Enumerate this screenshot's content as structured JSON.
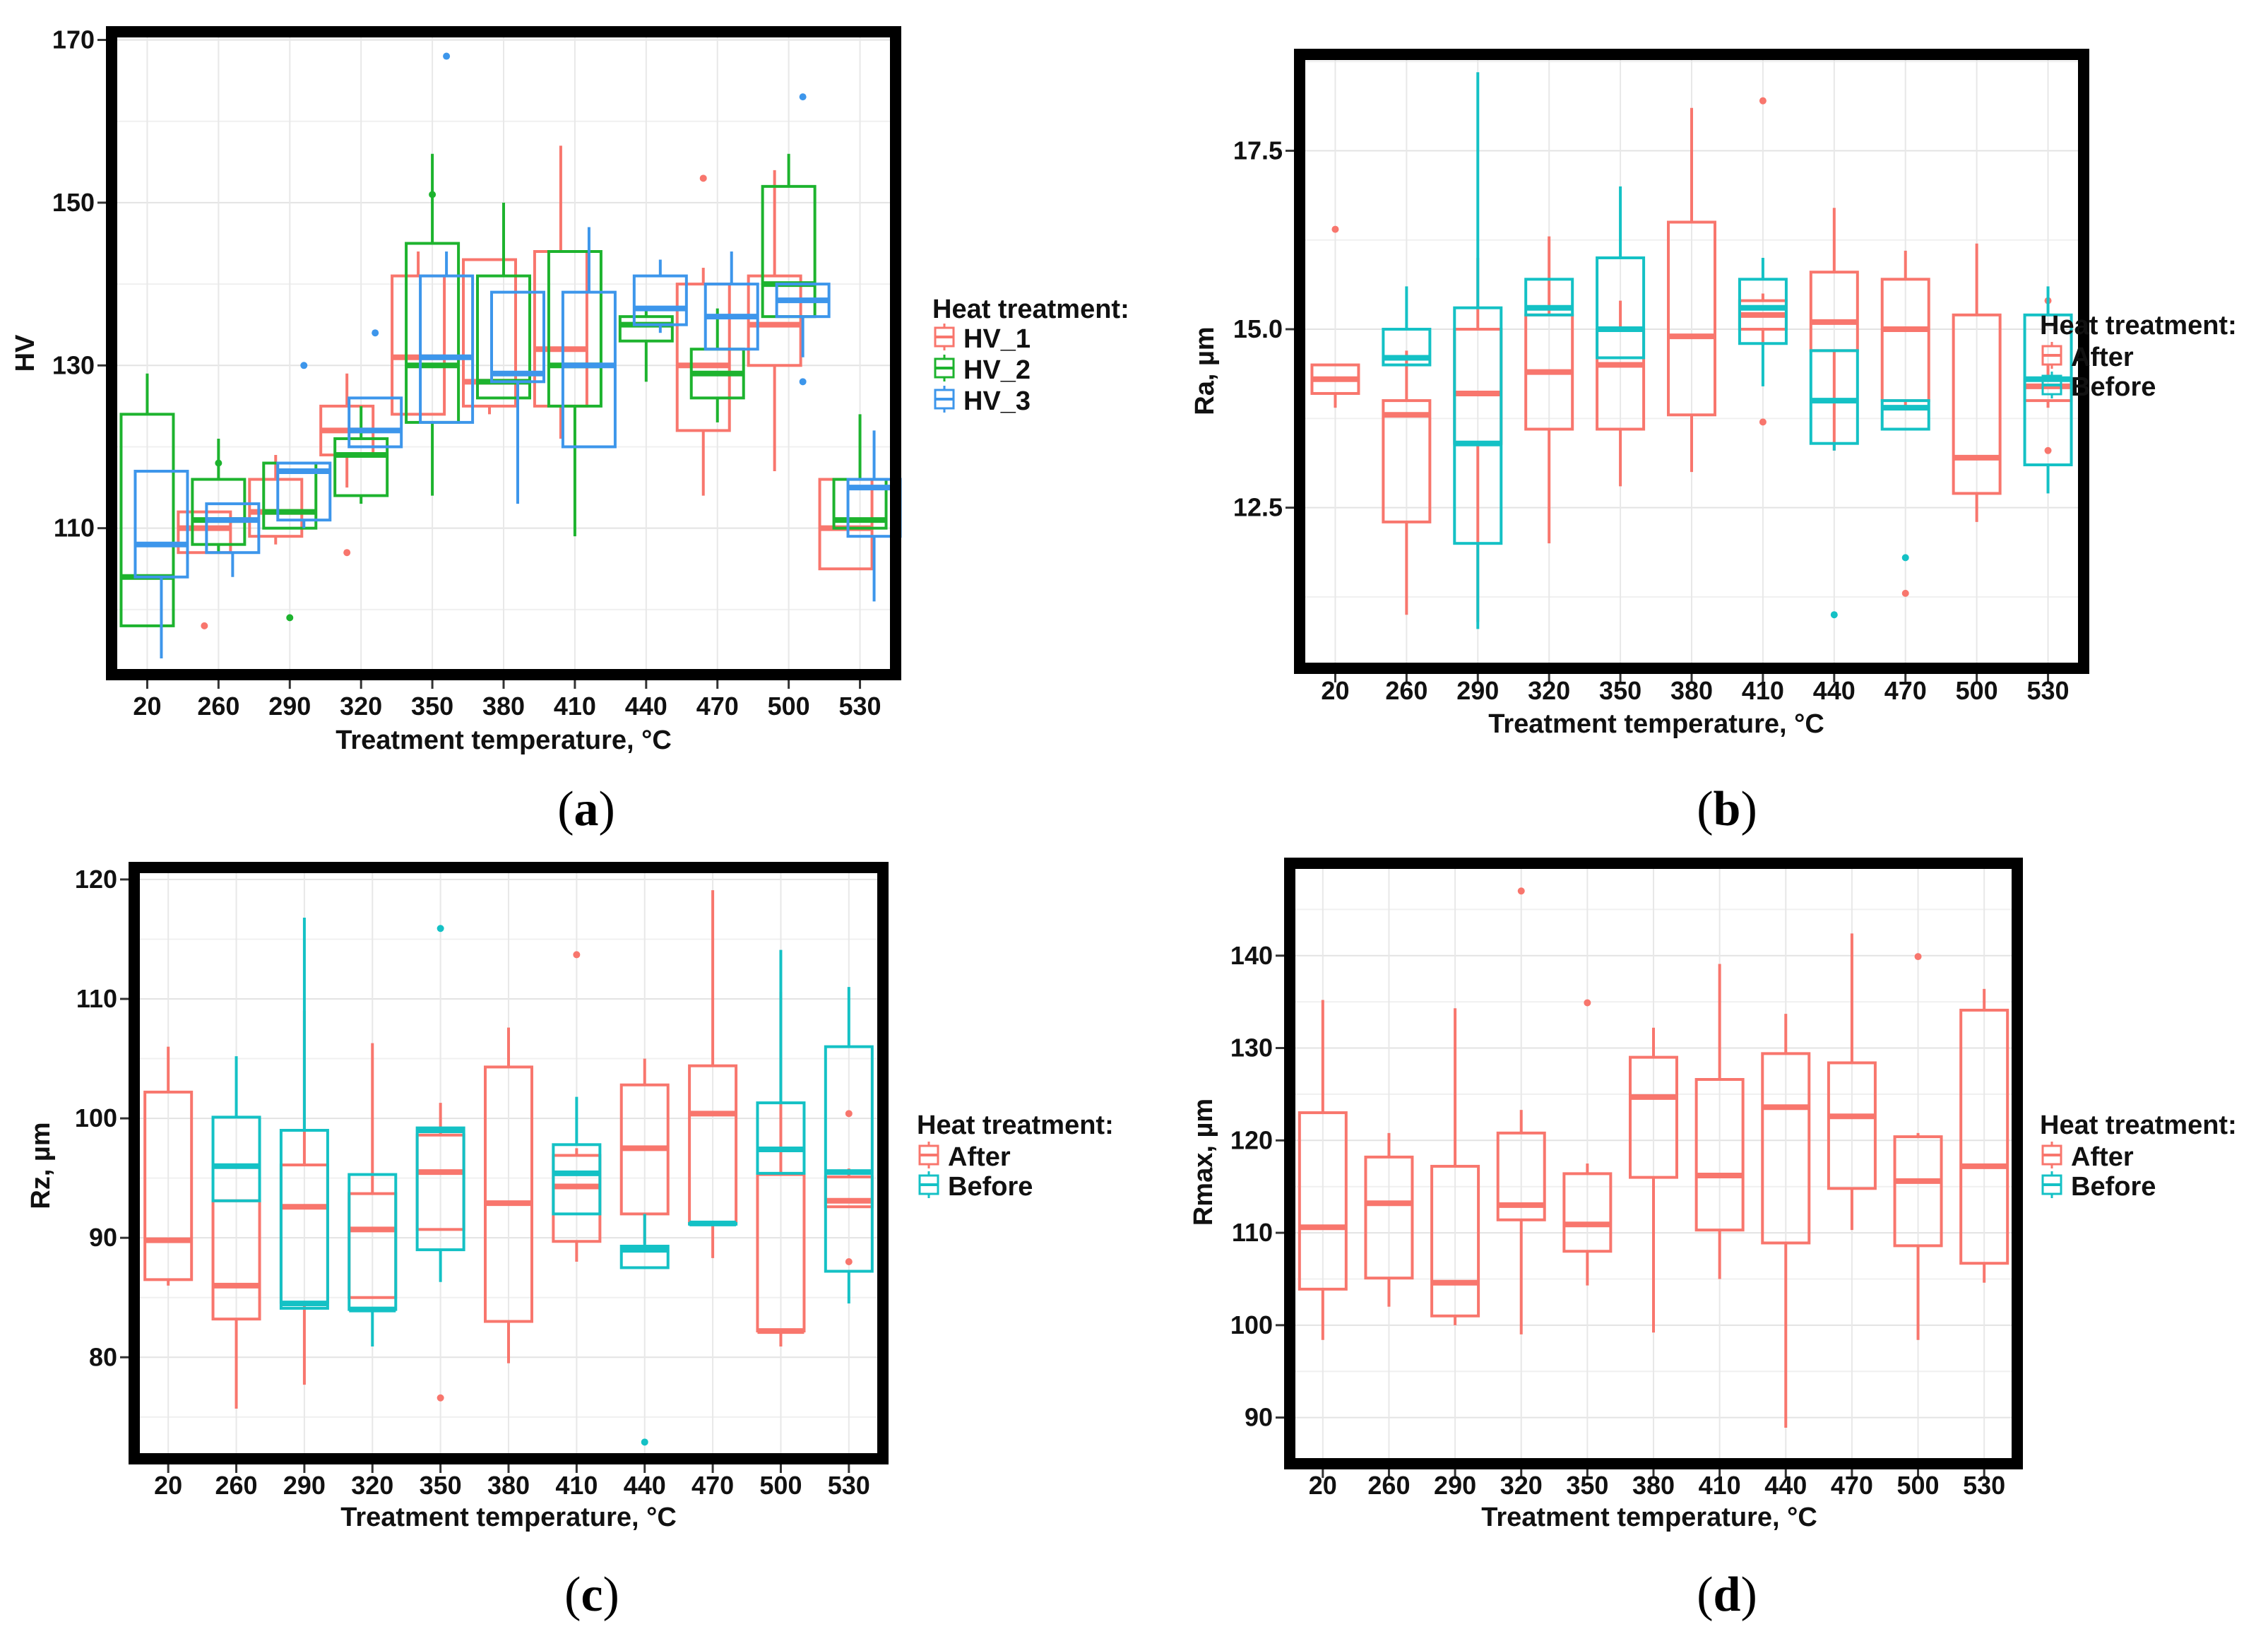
{
  "colors": {
    "HV_1": "#F8766D",
    "HV_2": "#1DB32E",
    "HV_3": "#3D96EB",
    "After": "#F8766D",
    "Before": "#14C1C5"
  },
  "chart_data": [
    {
      "panel": "a",
      "type": "box",
      "ylabel": "HV",
      "xlabel": "Treatment temperature, °C",
      "categories": [
        "20",
        "260",
        "290",
        "320",
        "350",
        "380",
        "410",
        "440",
        "470",
        "500",
        "530"
      ],
      "ylim": [
        92,
        171
      ],
      "yticks": [
        110,
        130,
        150,
        170
      ],
      "legend_title": "Heat treatment:",
      "series": [
        {
          "name": "HV_1",
          "boxes": [
            null,
            {
              "min": 107,
              "q1": 107,
              "median": 110,
              "q3": 112,
              "max": 112,
              "outliers": [
                98
              ]
            },
            {
              "min": 108,
              "q1": 109,
              "median": 112,
              "q3": 116,
              "max": 119,
              "outliers": []
            },
            {
              "min": 115,
              "q1": 119,
              "median": 122,
              "q3": 125,
              "max": 129,
              "outliers": [
                107
              ]
            },
            {
              "min": 124,
              "q1": 124,
              "median": 131,
              "q3": 141,
              "max": 144,
              "outliers": []
            },
            {
              "min": 124,
              "q1": 125,
              "median": 128,
              "q3": 143,
              "max": 143,
              "outliers": []
            },
            {
              "min": 121,
              "q1": 125,
              "median": 132,
              "q3": 144,
              "max": 157,
              "outliers": []
            },
            null,
            {
              "min": 114,
              "q1": 122,
              "median": 130,
              "q3": 140,
              "max": 142,
              "outliers": [
                153
              ]
            },
            {
              "min": 117,
              "q1": 130,
              "median": 135,
              "q3": 141,
              "max": 154,
              "outliers": []
            },
            {
              "min": 105,
              "q1": 105,
              "median": 110,
              "q3": 116,
              "max": 116,
              "outliers": []
            }
          ]
        },
        {
          "name": "HV_2",
          "boxes": [
            {
              "min": 98,
              "q1": 98,
              "median": 104,
              "q3": 124,
              "max": 129,
              "outliers": []
            },
            {
              "min": 107,
              "q1": 108,
              "median": 111,
              "q3": 116,
              "max": 121,
              "outliers": [
                118
              ]
            },
            {
              "min": 110,
              "q1": 110,
              "median": 112,
              "q3": 118,
              "max": 118,
              "outliers": [
                99
              ]
            },
            {
              "min": 113,
              "q1": 114,
              "median": 119,
              "q3": 121,
              "max": 125,
              "outliers": []
            },
            {
              "min": 114,
              "q1": 123,
              "median": 130,
              "q3": 145,
              "max": 156,
              "outliers": [
                151
              ]
            },
            {
              "min": 126,
              "q1": 126,
              "median": 128,
              "q3": 141,
              "max": 150,
              "outliers": []
            },
            {
              "min": 109,
              "q1": 125,
              "median": 130,
              "q3": 144,
              "max": 144,
              "outliers": []
            },
            {
              "min": 128,
              "q1": 133,
              "median": 135,
              "q3": 136,
              "max": 137,
              "outliers": []
            },
            {
              "min": 123,
              "q1": 126,
              "median": 129,
              "q3": 132,
              "max": 137,
              "outliers": []
            },
            {
              "min": 136,
              "q1": 136,
              "median": 140,
              "q3": 152,
              "max": 156,
              "outliers": []
            },
            {
              "min": 110,
              "q1": 110,
              "median": 111,
              "q3": 116,
              "max": 124,
              "outliers": []
            }
          ]
        },
        {
          "name": "HV_3",
          "boxes": [
            {
              "min": 94,
              "q1": 104,
              "median": 108,
              "q3": 117,
              "max": 117,
              "outliers": []
            },
            {
              "min": 104,
              "q1": 107,
              "median": 111,
              "q3": 113,
              "max": 113,
              "outliers": []
            },
            {
              "min": 110,
              "q1": 111,
              "median": 117,
              "q3": 118,
              "max": 118,
              "outliers": [
                130
              ]
            },
            {
              "min": 120,
              "q1": 120,
              "median": 122,
              "q3": 126,
              "max": 126,
              "outliers": [
                134
              ]
            },
            {
              "min": 123,
              "q1": 123,
              "median": 131,
              "q3": 141,
              "max": 144,
              "outliers": [
                168
              ]
            },
            {
              "min": 113,
              "q1": 128,
              "median": 129,
              "q3": 139,
              "max": 139,
              "outliers": []
            },
            {
              "min": 120,
              "q1": 120,
              "median": 130,
              "q3": 139,
              "max": 147,
              "outliers": []
            },
            {
              "min": 134,
              "q1": 135,
              "median": 137,
              "q3": 141,
              "max": 143,
              "outliers": []
            },
            {
              "min": 132,
              "q1": 132,
              "median": 136,
              "q3": 140,
              "max": 144,
              "outliers": []
            },
            {
              "min": 131,
              "q1": 136,
              "median": 138,
              "q3": 140,
              "max": 140,
              "outliers": [
                128,
                163
              ]
            },
            {
              "min": 101,
              "q1": 109,
              "median": 115,
              "q3": 116,
              "max": 122,
              "outliers": []
            }
          ]
        }
      ]
    },
    {
      "panel": "b",
      "type": "box",
      "ylabel": "Ra, µm",
      "xlabel": "Treatment temperature, °C",
      "categories": [
        "20",
        "260",
        "290",
        "320",
        "350",
        "380",
        "410",
        "440",
        "470",
        "500",
        "530"
      ],
      "ylim": [
        10.25,
        18.85
      ],
      "yticks": [
        12.5,
        15.0,
        17.5
      ],
      "yticklabels": [
        "12.5",
        "15.0",
        "17.5"
      ],
      "legend_title": "Heat treatment:",
      "series": [
        {
          "name": "After",
          "boxes": [
            {
              "min": 13.9,
              "q1": 14.1,
              "median": 14.3,
              "q3": 14.5,
              "max": 14.5,
              "outliers": [
                16.4
              ]
            },
            {
              "min": 11.0,
              "q1": 12.3,
              "median": 13.8,
              "q3": 14.0,
              "max": 14.7,
              "outliers": []
            },
            {
              "min": 10.9,
              "q1": 13.4,
              "median": 14.1,
              "q3": 15.0,
              "max": 16.0,
              "outliers": []
            },
            {
              "min": 12.0,
              "q1": 13.6,
              "median": 14.4,
              "q3": 15.2,
              "max": 16.3,
              "outliers": []
            },
            {
              "min": 12.8,
              "q1": 13.6,
              "median": 14.5,
              "q3": 15.0,
              "max": 15.4,
              "outliers": []
            },
            {
              "min": 13.0,
              "q1": 13.8,
              "median": 14.9,
              "q3": 16.5,
              "max": 18.1,
              "outliers": []
            },
            {
              "min": 14.8,
              "q1": 15.0,
              "median": 15.2,
              "q3": 15.4,
              "max": 15.5,
              "outliers": [
                18.2,
                13.7
              ]
            },
            {
              "min": 13.3,
              "q1": 14.7,
              "median": 15.1,
              "q3": 15.8,
              "max": 16.7,
              "outliers": []
            },
            {
              "min": 13.9,
              "q1": 14.0,
              "median": 15.0,
              "q3": 15.7,
              "max": 16.1,
              "outliers": [
                11.3
              ]
            },
            {
              "min": 12.3,
              "q1": 12.7,
              "median": 13.2,
              "q3": 15.2,
              "max": 16.2,
              "outliers": []
            },
            {
              "min": 13.9,
              "q1": 14.0,
              "median": 14.2,
              "q3": 14.3,
              "max": 14.5,
              "outliers": [
                15.4,
                13.3
              ]
            }
          ]
        },
        {
          "name": "Before",
          "boxes": [
            null,
            {
              "min": 14.5,
              "q1": 14.5,
              "median": 14.6,
              "q3": 15.0,
              "max": 15.6,
              "outliers": []
            },
            {
              "min": 10.8,
              "q1": 12.0,
              "median": 13.4,
              "q3": 15.3,
              "max": 18.6,
              "outliers": []
            },
            {
              "min": 15.2,
              "q1": 15.2,
              "median": 15.3,
              "q3": 15.7,
              "max": 15.7,
              "outliers": []
            },
            {
              "min": 14.6,
              "q1": 14.6,
              "median": 15.0,
              "q3": 16.0,
              "max": 17.0,
              "outliers": []
            },
            null,
            {
              "min": 14.2,
              "q1": 14.8,
              "median": 15.3,
              "q3": 15.7,
              "max": 16.0,
              "outliers": []
            },
            {
              "min": 13.3,
              "q1": 13.4,
              "median": 14.0,
              "q3": 14.7,
              "max": 14.7,
              "outliers": [
                11.0
              ]
            },
            {
              "min": 13.6,
              "q1": 13.6,
              "median": 13.9,
              "q3": 14.0,
              "max": 14.0,
              "outliers": [
                11.8
              ]
            },
            null,
            {
              "min": 12.7,
              "q1": 13.1,
              "median": 14.3,
              "q3": 15.2,
              "max": 15.6,
              "outliers": []
            }
          ]
        }
      ]
    },
    {
      "panel": "c",
      "type": "box",
      "ylabel": "Rz, µm",
      "xlabel": "Treatment temperature, °C",
      "categories": [
        "20",
        "260",
        "290",
        "320",
        "350",
        "380",
        "410",
        "440",
        "470",
        "500",
        "530"
      ],
      "ylim": [
        71.5,
        121
      ],
      "yticks": [
        80,
        90,
        100,
        110,
        120
      ],
      "legend_title": "Heat treatment:",
      "series": [
        {
          "name": "After",
          "boxes": [
            {
              "min": 86,
              "q1": 86.5,
              "median": 89.8,
              "q3": 102.2,
              "max": 106,
              "outliers": []
            },
            {
              "min": 75.7,
              "q1": 83.2,
              "median": 86,
              "q3": 93.1,
              "max": 93.1,
              "outliers": []
            },
            {
              "min": 77.7,
              "q1": 84.6,
              "median": 92.6,
              "q3": 96.1,
              "max": 109,
              "outliers": []
            },
            {
              "min": 85,
              "q1": 85,
              "median": 90.7,
              "q3": 93.7,
              "max": 106.3,
              "outliers": []
            },
            {
              "min": 90.7,
              "q1": 90.7,
              "median": 95.5,
              "q3": 98.6,
              "max": 101.3,
              "outliers": [
                76.6
              ]
            },
            {
              "min": 79.5,
              "q1": 83,
              "median": 92.9,
              "q3": 104.3,
              "max": 107.6,
              "outliers": []
            },
            {
              "min": 88,
              "q1": 89.7,
              "median": 94.3,
              "q3": 96.9,
              "max": 97.5,
              "outliers": [
                113.7
              ]
            },
            {
              "min": 89.5,
              "q1": 92,
              "median": 97.5,
              "q3": 102.8,
              "max": 105,
              "outliers": []
            },
            {
              "min": 88.3,
              "q1": 91.3,
              "median": 100.4,
              "q3": 104.4,
              "max": 119.1,
              "outliers": []
            },
            {
              "min": 80.9,
              "q1": 82.2,
              "median": 82.2,
              "q3": 95.3,
              "max": 110.6,
              "outliers": []
            },
            {
              "min": 92.6,
              "q1": 92.6,
              "median": 93.1,
              "q3": 95.1,
              "max": 95.8,
              "outliers": [
                100.4,
                88
              ]
            }
          ]
        },
        {
          "name": "Before",
          "boxes": [
            null,
            {
              "min": 93.1,
              "q1": 93.1,
              "median": 96,
              "q3": 100.1,
              "max": 105.2,
              "outliers": []
            },
            {
              "min": 84.1,
              "q1": 84.1,
              "median": 84.5,
              "q3": 99,
              "max": 116.8,
              "outliers": []
            },
            {
              "min": 80.9,
              "q1": 84,
              "median": 84,
              "q3": 95.3,
              "max": 95.3,
              "outliers": []
            },
            {
              "min": 86.3,
              "q1": 89,
              "median": 99,
              "q3": 99.2,
              "max": 99.2,
              "outliers": [
                115.9
              ]
            },
            null,
            {
              "min": 92,
              "q1": 92,
              "median": 95.4,
              "q3": 97.8,
              "max": 101.8,
              "outliers": []
            },
            {
              "min": 87.5,
              "q1": 87.5,
              "median": 89,
              "q3": 89.3,
              "max": 92,
              "outliers": [
                72.9
              ]
            },
            {
              "min": 91.2,
              "q1": 91.2,
              "median": 91.2,
              "q3": 91.2,
              "max": 91.2,
              "outliers": []
            },
            {
              "min": 95.4,
              "q1": 95.4,
              "median": 97.4,
              "q3": 101.3,
              "max": 114.1,
              "outliers": []
            },
            {
              "min": 84.5,
              "q1": 87.2,
              "median": 95.5,
              "q3": 106,
              "max": 111,
              "outliers": []
            }
          ]
        }
      ]
    },
    {
      "panel": "d",
      "type": "box",
      "ylabel": "Rmax, µm",
      "xlabel": "Treatment temperature, °C",
      "categories": [
        "20",
        "260",
        "290",
        "320",
        "350",
        "380",
        "410",
        "440",
        "470",
        "500",
        "530"
      ],
      "ylim": [
        85,
        150
      ],
      "yticks": [
        90,
        100,
        110,
        120,
        130,
        140
      ],
      "legend_title": "Heat treatment:",
      "series": [
        {
          "name": "After",
          "boxes": [
            {
              "min": 98.4,
              "q1": 103.9,
              "median": 110.6,
              "q3": 123,
              "max": 135.2,
              "outliers": []
            },
            {
              "min": 102,
              "q1": 105.1,
              "median": 113.2,
              "q3": 118.2,
              "max": 120.8,
              "outliers": []
            },
            {
              "min": 100,
              "q1": 101,
              "median": 104.6,
              "q3": 117.2,
              "max": 134.3,
              "outliers": []
            },
            {
              "min": 99,
              "q1": 111.4,
              "median": 113,
              "q3": 120.8,
              "max": 123.3,
              "outliers": [
                147
              ]
            },
            {
              "min": 104.3,
              "q1": 108,
              "median": 110.9,
              "q3": 116.4,
              "max": 117.5,
              "outliers": [
                134.9
              ]
            },
            {
              "min": 99.2,
              "q1": 116,
              "median": 124.7,
              "q3": 129,
              "max": 132.2,
              "outliers": []
            },
            {
              "min": 105,
              "q1": 110.3,
              "median": 116.2,
              "q3": 126.6,
              "max": 139.1,
              "outliers": []
            },
            {
              "min": 88.9,
              "q1": 108.9,
              "median": 123.6,
              "q3": 129.4,
              "max": 133.7,
              "outliers": []
            },
            {
              "min": 110.3,
              "q1": 114.8,
              "median": 122.6,
              "q3": 128.4,
              "max": 142.4,
              "outliers": []
            },
            {
              "min": 98.4,
              "q1": 108.6,
              "median": 115.6,
              "q3": 120.4,
              "max": 120.8,
              "outliers": [
                139.9
              ]
            },
            {
              "min": 104.6,
              "q1": 106.7,
              "median": 117.2,
              "q3": 134.1,
              "max": 136.4,
              "outliers": []
            }
          ]
        },
        {
          "name": "Before",
          "boxes": []
        }
      ]
    }
  ],
  "panel_labels": {
    "a": "a",
    "b": "b",
    "c": "c",
    "d": "d"
  }
}
